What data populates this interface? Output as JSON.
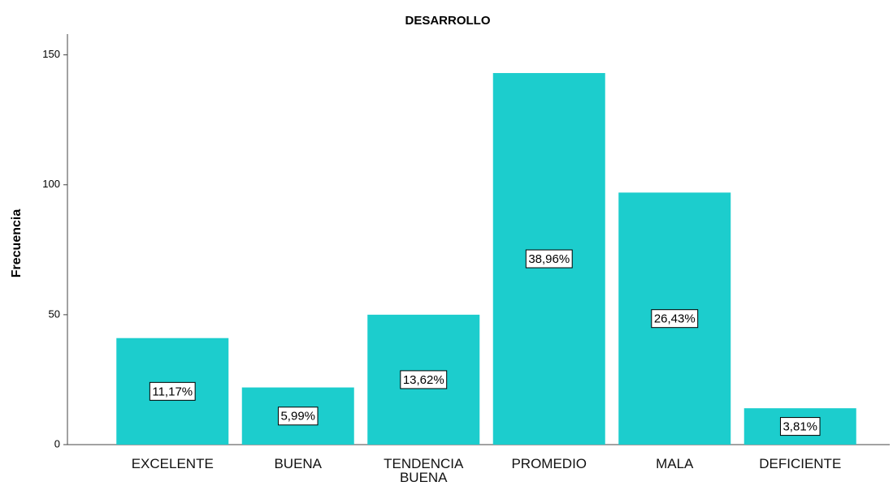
{
  "chart_data": {
    "type": "bar",
    "title": "DESARROLLO",
    "y_label": "Frecuencia",
    "categories": [
      "EXCELENTE",
      "BUENA",
      "TENDENCIA BUENA",
      "PROMEDIO",
      "MALA",
      "DEFICIENTE"
    ],
    "values": [
      41,
      22,
      50,
      143,
      97,
      14
    ],
    "percent_labels": [
      "11,17%",
      "5,99%",
      "13,62%",
      "38,96%",
      "26,43%",
      "3,81%"
    ],
    "color": "#1ccdcd",
    "ylim": [
      0,
      158
    ],
    "yticks": [
      0,
      50,
      100,
      150
    ],
    "grid": false
  }
}
